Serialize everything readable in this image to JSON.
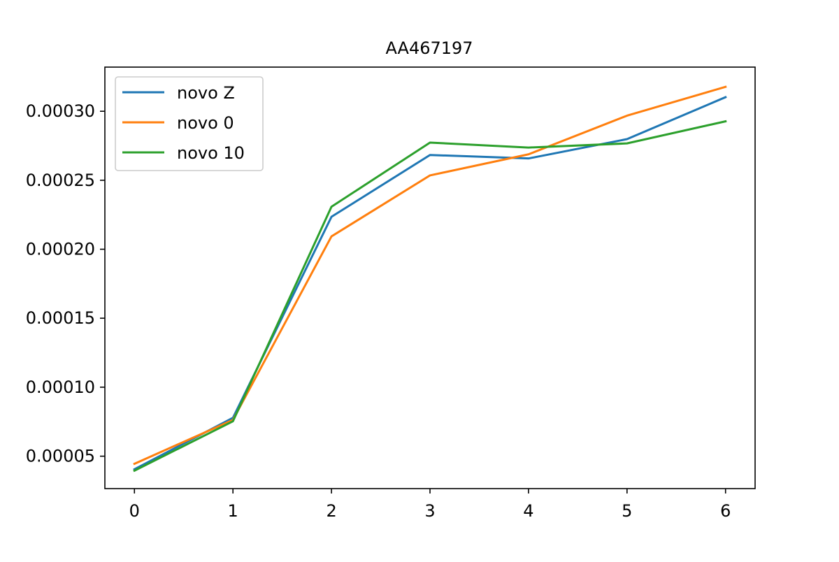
{
  "chart_data": {
    "type": "line",
    "title": "AA467197",
    "xlabel": "",
    "ylabel": "",
    "x": [
      0,
      1,
      2,
      3,
      4,
      5,
      6
    ],
    "x_ticks": [
      "0",
      "1",
      "2",
      "3",
      "4",
      "5",
      "6"
    ],
    "y_ticks": [
      "0.00005",
      "0.00010",
      "0.00015",
      "0.00020",
      "0.00025",
      "0.00030"
    ],
    "y_tick_values": [
      5e-05,
      0.0001,
      0.00015,
      0.0002,
      0.00025,
      0.0003
    ],
    "xlim": [
      -0.3,
      6.3
    ],
    "ylim": [
      2.65e-05,
      0.000332
    ],
    "grid": false,
    "legend_position": "upper-left",
    "series": [
      {
        "name": "novo Z",
        "color": "#1f77b4",
        "values": [
          4.05e-05,
          7.78e-05,
          0.0002235,
          0.0002683,
          0.0002658,
          0.0002798,
          0.0003102
        ]
      },
      {
        "name": "novo 0",
        "color": "#ff7f0e",
        "values": [
          4.45e-05,
          7.63e-05,
          0.0002093,
          0.0002535,
          0.0002688,
          0.0002968,
          0.0003177
        ]
      },
      {
        "name": "novo 10",
        "color": "#2ca02c",
        "values": [
          3.95e-05,
          7.53e-05,
          0.0002308,
          0.0002773,
          0.0002737,
          0.0002767,
          0.0002927
        ]
      }
    ]
  }
}
